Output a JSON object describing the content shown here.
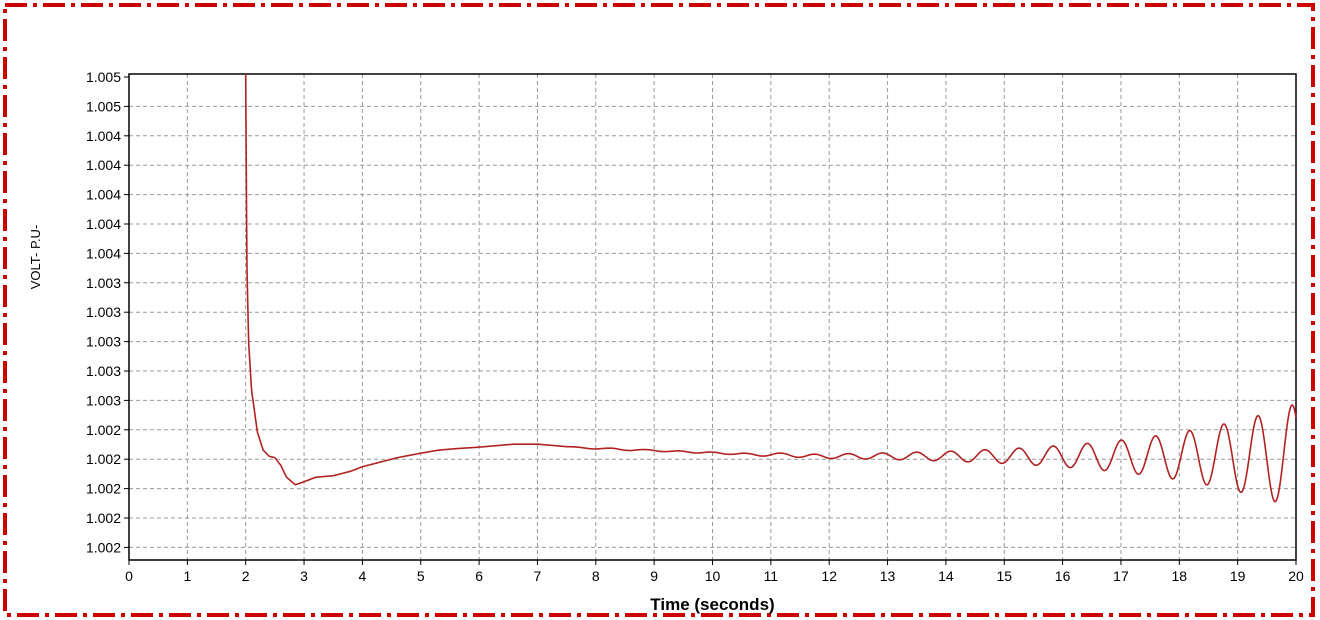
{
  "chart_data": {
    "type": "line",
    "title": "",
    "xlabel": "Time (seconds)",
    "ylabel": "VOLT- P.U-",
    "xlim": [
      0,
      20
    ],
    "ylim": [
      1.00215,
      1.00538
    ],
    "x_ticks": [
      "0",
      "1",
      "2",
      "3",
      "4",
      "5",
      "6",
      "7",
      "8",
      "9",
      "10",
      "11",
      "12",
      "13",
      "14",
      "15",
      "16",
      "17",
      "18",
      "19",
      "20"
    ],
    "y_ticks": [
      "1.005",
      "1.005",
      "1.004",
      "1.004",
      "1.004",
      "1.004",
      "1.004",
      "1.003",
      "1.003",
      "1.003",
      "1.003",
      "1.003",
      "1.002",
      "1.002",
      "1.002",
      "1.002",
      "1.002"
    ],
    "grid": true,
    "series": [
      {
        "color": "#b22222",
        "x": [
          2.0,
          2.02,
          2.05,
          2.1,
          2.2,
          2.3,
          2.4,
          2.5,
          2.6,
          2.7,
          2.85,
          3.0,
          3.2,
          3.5,
          3.8,
          4.0,
          4.3,
          4.6,
          5.0,
          5.3,
          5.6,
          6.0,
          6.3,
          6.6,
          7.0,
          7.3,
          7.6,
          8.0,
          8.3,
          8.6,
          9.0,
          9.3,
          9.6,
          10.0,
          10.3,
          10.6,
          11.0,
          11.3,
          11.6,
          12.0,
          12.3,
          12.6,
          13.0,
          13.3,
          13.6,
          14.0,
          14.3,
          14.6,
          15.0,
          15.3,
          15.6,
          16.0,
          16.3,
          16.6,
          17.0,
          17.3,
          17.6,
          18.0,
          18.3,
          18.6,
          19.0,
          19.3,
          19.6,
          20.0
        ],
        "values": [
          1.00538,
          1.00412,
          1.0036,
          1.00328,
          1.003,
          1.00288,
          1.00284,
          1.00283,
          1.00278,
          1.0027,
          1.00265,
          1.00267,
          1.0027,
          1.00271,
          1.00274,
          1.00277,
          1.0028,
          1.00283,
          1.00286,
          1.00288,
          1.00289,
          1.0029,
          1.00291,
          1.00292,
          1.00292,
          1.00291,
          1.0029,
          1.00289,
          1.00289,
          1.00288,
          1.00288,
          1.00287,
          1.00287,
          1.00286,
          1.00286,
          1.00285,
          1.00285,
          1.00285,
          1.00284,
          1.00284,
          1.00284,
          1.00284,
          1.00284,
          1.00284,
          1.00284,
          1.00284,
          1.00284,
          1.00284,
          1.00284,
          1.00284,
          1.00284,
          1.00284,
          1.00284,
          1.00284,
          1.00284,
          1.00284,
          1.00284,
          1.00284,
          1.00284,
          1.00284,
          1.00284,
          1.00284,
          1.00284,
          1.00284
        ],
        "note_oscillation": "Growing sinusoidal oscillation superimposed from about t=8 s; peak-to-peak grows to ~0.0010 p.u. near t=20 s, period ~0.58 s"
      }
    ]
  },
  "frame": {
    "border_color": "#cc0000"
  }
}
